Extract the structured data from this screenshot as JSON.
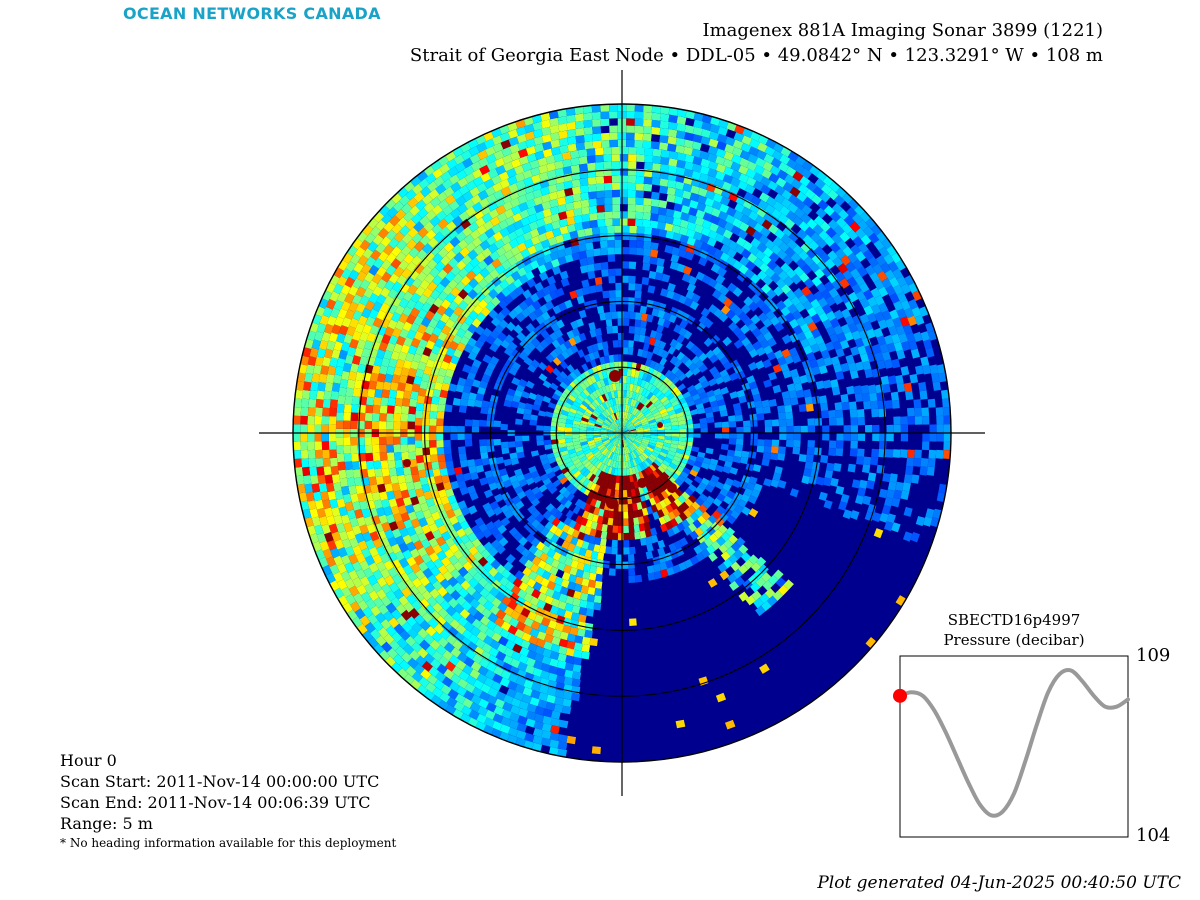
{
  "brand": "OCEAN NETWORKS CANADA",
  "title_line1": "Imagenex 881A Imaging Sonar 3899 (1221)",
  "title_line2": "Strait of Georgia East Node • DDL-05 • 49.0842° N • 123.3291° W • 108 m",
  "info": {
    "hour": "Hour 0",
    "scan_start": "Scan Start: 2011-Nov-14 00:00:00 UTC",
    "scan_end": "Scan End: 2011-Nov-14 00:06:39 UTC",
    "range": "Range: 5 m",
    "note": "* No heading information available for this deployment"
  },
  "footer": "Plot generated 04-Jun-2025 00:40:50 UTC",
  "colors": {
    "sonar_background": "#00008f",
    "sonar_low": "#0a2ad8",
    "sonar_mid": "#00b4ff",
    "sonar_high": "#ffe000",
    "sonar_peak": "#8b0000",
    "pressure_line": "#999999",
    "pressure_marker": "#ff0000"
  },
  "chart_data": [
    {
      "type": "heatmap",
      "description_kind": "polar sonar intensity image",
      "range_rings": 5,
      "range_max_m": 5,
      "colormap": "jet"
    },
    {
      "type": "line",
      "title": "SBECTD16p4997",
      "ylabel": "Pressure (decibar)",
      "ylim": [
        104,
        109
      ],
      "ytick_labels": [
        "109",
        "104"
      ],
      "values": [
        107.9,
        108.0,
        107.9,
        107.5,
        106.9,
        106.2,
        105.5,
        104.9,
        104.6,
        104.7,
        105.2,
        106.1,
        107.1,
        108.0,
        108.5,
        108.6,
        108.3,
        107.9,
        107.6,
        107.6,
        107.8
      ],
      "current_index": 0
    }
  ]
}
